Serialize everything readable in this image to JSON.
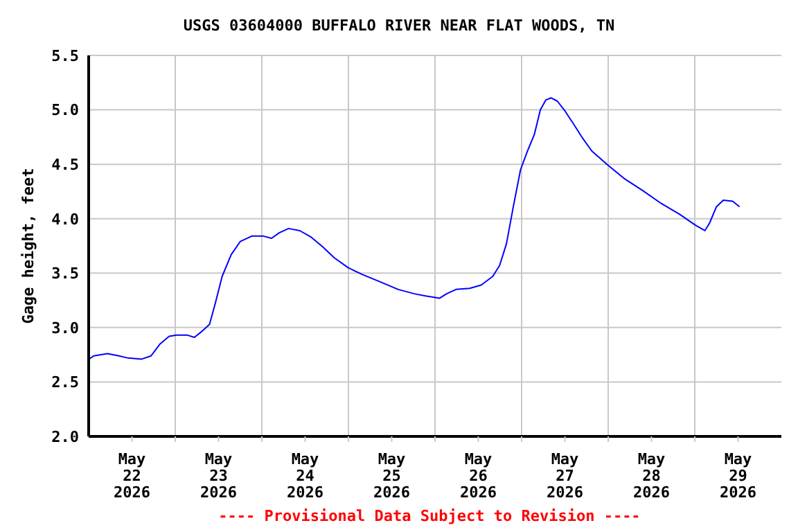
{
  "chart_data": {
    "type": "line",
    "title": "USGS 03604000 BUFFALO RIVER NEAR FLAT WOODS, TN",
    "ylabel": "Gage height, feet",
    "annotations": [
      "---- Provisional Data Subject to Revision ----"
    ],
    "grid": true,
    "xlim": [
      "2026-05-22T00:00",
      "2026-05-30T00:00"
    ],
    "xticks": [
      {
        "value": "2026-05-22T12:00",
        "label": "May\n22\n2026"
      },
      {
        "value": "2026-05-23T00:00",
        "label": null
      },
      {
        "value": "2026-05-23T12:00",
        "label": "May\n23\n2026"
      },
      {
        "value": "2026-05-24T00:00",
        "label": null
      },
      {
        "value": "2026-05-24T12:00",
        "label": "May\n24\n2026"
      },
      {
        "value": "2026-05-25T00:00",
        "label": null
      },
      {
        "value": "2026-05-25T12:00",
        "label": "May\n25\n2026"
      },
      {
        "value": "2026-05-26T00:00",
        "label": null
      },
      {
        "value": "2026-05-26T12:00",
        "label": "May\n26\n2026"
      },
      {
        "value": "2026-05-27T00:00",
        "label": null
      },
      {
        "value": "2026-05-27T12:00",
        "label": "May\n27\n2026"
      },
      {
        "value": "2026-05-28T00:00",
        "label": null
      },
      {
        "value": "2026-05-28T12:00",
        "label": "May\n28\n2026"
      },
      {
        "value": "2026-05-29T00:00",
        "label": null
      },
      {
        "value": "2026-05-29T12:00",
        "label": "May\n29\n2026"
      }
    ],
    "ylim": [
      2.0,
      5.5
    ],
    "yticks": [
      {
        "value": 2,
        "label": "2.0"
      },
      {
        "value": 2.5,
        "label": "2.5"
      },
      {
        "value": 3,
        "label": "3.0"
      },
      {
        "value": 3.5,
        "label": "3.5"
      },
      {
        "value": 4,
        "label": "4.0"
      },
      {
        "value": 4.5,
        "label": "4.5"
      },
      {
        "value": 5,
        "label": "5.0"
      },
      {
        "value": 5.5,
        "label": "5.5"
      }
    ],
    "x": [
      "2026-05-22T00:06",
      "2026-05-22T01:24",
      "2026-05-22T05:12",
      "2026-05-22T08:24",
      "2026-05-22T10:54",
      "2026-05-22T14:42",
      "2026-05-22T17:18",
      "2026-05-22T19:48",
      "2026-05-22T22:18",
      "2026-05-23T00:18",
      "2026-05-23T03:24",
      "2026-05-23T05:18",
      "2026-05-23T07:12",
      "2026-05-23T09:30",
      "2026-05-23T11:00",
      "2026-05-23T13:00",
      "2026-05-23T15:30",
      "2026-05-23T18:00",
      "2026-05-23T21:12",
      "2026-05-24T00:24",
      "2026-05-24T02:42",
      "2026-05-24T04:48",
      "2026-05-24T07:24",
      "2026-05-24T10:30",
      "2026-05-24T13:42",
      "2026-05-24T16:54",
      "2026-05-24T20:06",
      "2026-05-24T23:54",
      "2026-05-25T03:42",
      "2026-05-25T08:48",
      "2026-05-25T13:48",
      "2026-05-25T18:18",
      "2026-05-25T21:24",
      "2026-05-26T01:18",
      "2026-05-26T03:12",
      "2026-05-26T05:48",
      "2026-05-26T09:36",
      "2026-05-26T12:48",
      "2026-05-26T16:00",
      "2026-05-26T17:54",
      "2026-05-26T19:48",
      "2026-05-26T21:42",
      "2026-05-26T23:42",
      "2026-05-27T01:36",
      "2026-05-27T03:30",
      "2026-05-27T05:12",
      "2026-05-27T06:42",
      "2026-05-27T08:12",
      "2026-05-27T09:54",
      "2026-05-27T11:48",
      "2026-05-27T14:24",
      "2026-05-27T16:54",
      "2026-05-27T19:30",
      "2026-05-28T00:00",
      "2026-05-28T04:24",
      "2026-05-28T09:30",
      "2026-05-28T14:42",
      "2026-05-28T19:48",
      "2026-05-29T00:12",
      "2026-05-29T02:48",
      "2026-05-29T04:06",
      "2026-05-29T06:00",
      "2026-05-29T07:54",
      "2026-05-29T10:30",
      "2026-05-29T12:24"
    ],
    "series": [
      {
        "color": "#0000ff",
        "values": [
          2.71,
          2.74,
          2.76,
          2.74,
          2.72,
          2.71,
          2.74,
          2.85,
          2.92,
          2.93,
          2.93,
          2.91,
          2.96,
          3.03,
          3.21,
          3.47,
          3.67,
          3.79,
          3.84,
          3.84,
          3.82,
          3.87,
          3.91,
          3.89,
          3.83,
          3.74,
          3.64,
          3.55,
          3.49,
          3.42,
          3.35,
          3.31,
          3.29,
          3.27,
          3.31,
          3.35,
          3.36,
          3.39,
          3.47,
          3.57,
          3.77,
          4.11,
          4.45,
          4.62,
          4.77,
          5.0,
          5.09,
          5.11,
          5.08,
          5.0,
          4.87,
          4.74,
          4.62,
          4.49,
          4.37,
          4.26,
          4.14,
          4.04,
          3.94,
          3.89,
          3.96,
          4.11,
          4.17,
          4.16,
          4.11
        ]
      }
    ]
  }
}
